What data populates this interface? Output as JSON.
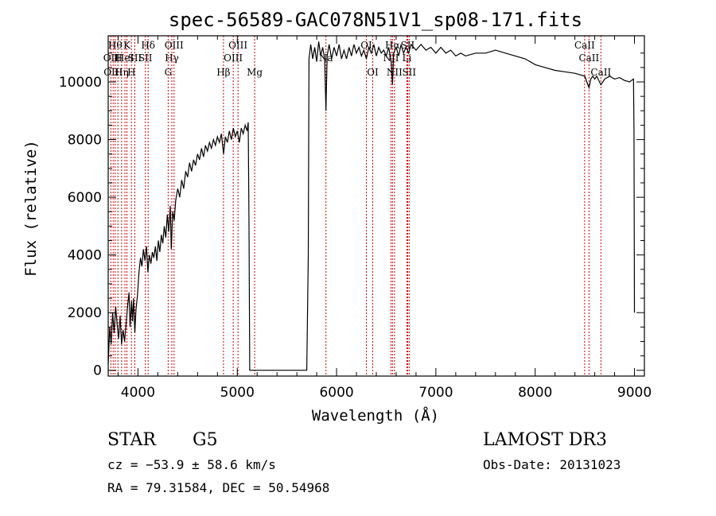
{
  "chart_data": {
    "type": "line",
    "title": "spec-56589-GAC078N51V1_sp08-171.fits",
    "xlabel": "Wavelength (Å)",
    "ylabel": "Flux (relative)",
    "xlim": [
      3700,
      9100
    ],
    "ylim": [
      -200,
      11600
    ],
    "xticks": [
      4000,
      5000,
      6000,
      7000,
      8000,
      9000
    ],
    "yticks": [
      0,
      2000,
      4000,
      6000,
      8000,
      10000
    ],
    "grid": false,
    "line_color": "#000000",
    "marker_color": "#cc0000",
    "series": [
      {
        "name": "flux",
        "points": [
          [
            3700,
            200
          ],
          [
            3715,
            1500
          ],
          [
            3730,
            900
          ],
          [
            3745,
            2000
          ],
          [
            3760,
            1300
          ],
          [
            3775,
            2200
          ],
          [
            3790,
            1600
          ],
          [
            3805,
            1100
          ],
          [
            3820,
            1900
          ],
          [
            3835,
            900
          ],
          [
            3850,
            1400
          ],
          [
            3865,
            1000
          ],
          [
            3880,
            1600
          ],
          [
            3895,
            2200
          ],
          [
            3910,
            2700
          ],
          [
            3920,
            1500
          ],
          [
            3935,
            2400
          ],
          [
            3945,
            1700
          ],
          [
            3955,
            2500
          ],
          [
            3968,
            1300
          ],
          [
            3980,
            2100
          ],
          [
            3995,
            2600
          ],
          [
            4010,
            3400
          ],
          [
            4025,
            3900
          ],
          [
            4040,
            3600
          ],
          [
            4055,
            4200
          ],
          [
            4070,
            3800
          ],
          [
            4085,
            4300
          ],
          [
            4100,
            3400
          ],
          [
            4115,
            4000
          ],
          [
            4130,
            3700
          ],
          [
            4145,
            4100
          ],
          [
            4160,
            3900
          ],
          [
            4175,
            4300
          ],
          [
            4190,
            3800
          ],
          [
            4205,
            4500
          ],
          [
            4220,
            4100
          ],
          [
            4235,
            4700
          ],
          [
            4250,
            4400
          ],
          [
            4265,
            5000
          ],
          [
            4280,
            4600
          ],
          [
            4295,
            5400
          ],
          [
            4310,
            4800
          ],
          [
            4325,
            5700
          ],
          [
            4335,
            4200
          ],
          [
            4350,
            5500
          ],
          [
            4365,
            5200
          ],
          [
            4380,
            5900
          ],
          [
            4400,
            6300
          ],
          [
            4420,
            6000
          ],
          [
            4440,
            6600
          ],
          [
            4460,
            6300
          ],
          [
            4480,
            6900
          ],
          [
            4500,
            6700
          ],
          [
            4520,
            7200
          ],
          [
            4540,
            6900
          ],
          [
            4560,
            7300
          ],
          [
            4580,
            7100
          ],
          [
            4600,
            7500
          ],
          [
            4620,
            7300
          ],
          [
            4640,
            7700
          ],
          [
            4660,
            7400
          ],
          [
            4680,
            7800
          ],
          [
            4700,
            7600
          ],
          [
            4720,
            7900
          ],
          [
            4740,
            7700
          ],
          [
            4760,
            8000
          ],
          [
            4780,
            7800
          ],
          [
            4800,
            8100
          ],
          [
            4820,
            7900
          ],
          [
            4840,
            8200
          ],
          [
            4862,
            7500
          ],
          [
            4880,
            8100
          ],
          [
            4900,
            7900
          ],
          [
            4920,
            8300
          ],
          [
            4940,
            8000
          ],
          [
            4960,
            8400
          ],
          [
            4980,
            8100
          ],
          [
            5000,
            8300
          ],
          [
            5020,
            7900
          ],
          [
            5040,
            8400
          ],
          [
            5060,
            8200
          ],
          [
            5080,
            8500
          ],
          [
            5100,
            8300
          ],
          [
            5110,
            8600
          ],
          [
            5118,
            5000
          ],
          [
            5125,
            0
          ],
          [
            5300,
            0
          ],
          [
            5500,
            0
          ],
          [
            5700,
            0
          ],
          [
            5715,
            4000
          ],
          [
            5722,
            10800
          ],
          [
            5740,
            11300
          ],
          [
            5760,
            10800
          ],
          [
            5780,
            11200
          ],
          [
            5800,
            10700
          ],
          [
            5820,
            11400
          ],
          [
            5840,
            10900
          ],
          [
            5860,
            11200
          ],
          [
            5880,
            10800
          ],
          [
            5893,
            9000
          ],
          [
            5905,
            10900
          ],
          [
            5925,
            11300
          ],
          [
            5950,
            10800
          ],
          [
            5975,
            11200
          ],
          [
            6000,
            10900
          ],
          [
            6025,
            11300
          ],
          [
            6050,
            10800
          ],
          [
            6075,
            11100
          ],
          [
            6100,
            10800
          ],
          [
            6125,
            11200
          ],
          [
            6150,
            10900
          ],
          [
            6175,
            11300
          ],
          [
            6200,
            11000
          ],
          [
            6225,
            11200
          ],
          [
            6250,
            10900
          ],
          [
            6275,
            11100
          ],
          [
            6300,
            10800
          ],
          [
            6325,
            11200
          ],
          [
            6350,
            11000
          ],
          [
            6375,
            11300
          ],
          [
            6400,
            10900
          ],
          [
            6425,
            11200
          ],
          [
            6450,
            11000
          ],
          [
            6475,
            11100
          ],
          [
            6500,
            10900
          ],
          [
            6525,
            11200
          ],
          [
            6550,
            10700
          ],
          [
            6563,
            9900
          ],
          [
            6575,
            11000
          ],
          [
            6600,
            11200
          ],
          [
            6625,
            10900
          ],
          [
            6650,
            11300
          ],
          [
            6675,
            11000
          ],
          [
            6700,
            11200
          ],
          [
            6725,
            11000
          ],
          [
            6750,
            11300
          ],
          [
            6800,
            11100
          ],
          [
            6850,
            11300
          ],
          [
            6900,
            11100
          ],
          [
            6950,
            11200
          ],
          [
            7000,
            11000
          ],
          [
            7050,
            11200
          ],
          [
            7100,
            11000
          ],
          [
            7150,
            11100
          ],
          [
            7200,
            10900
          ],
          [
            7250,
            11000
          ],
          [
            7300,
            10900
          ],
          [
            7400,
            11000
          ],
          [
            7500,
            11000
          ],
          [
            7600,
            11100
          ],
          [
            7700,
            11000
          ],
          [
            7800,
            10900
          ],
          [
            7900,
            10800
          ],
          [
            8000,
            10600
          ],
          [
            8100,
            10500
          ],
          [
            8200,
            10400
          ],
          [
            8300,
            10350
          ],
          [
            8400,
            10300
          ],
          [
            8500,
            10200
          ],
          [
            8520,
            10000
          ],
          [
            8542,
            9800
          ],
          [
            8560,
            10100
          ],
          [
            8580,
            10200
          ],
          [
            8600,
            10100
          ],
          [
            8620,
            10200
          ],
          [
            8662,
            9900
          ],
          [
            8700,
            10100
          ],
          [
            8750,
            10200
          ],
          [
            8800,
            10100
          ],
          [
            8850,
            10150
          ],
          [
            8900,
            10050
          ],
          [
            8950,
            10000
          ],
          [
            8990,
            10100
          ],
          [
            8995,
            8400
          ],
          [
            9000,
            2000
          ]
        ]
      }
    ],
    "line_markers": [
      {
        "wavelength": 3727,
        "row": 2,
        "label": "OII"
      },
      {
        "wavelength": 3750,
        "row": 3,
        "label": "OIII"
      },
      {
        "wavelength": 3770,
        "row": 1,
        "label": "Hθ"
      },
      {
        "wavelength": 3798,
        "row": 2,
        "label": "H"
      },
      {
        "wavelength": 3835,
        "row": 3,
        "label": "Hη"
      },
      {
        "wavelength": 3869,
        "row": 2,
        "label": "HeI"
      },
      {
        "wavelength": 3889,
        "row": 1,
        "label": "K"
      },
      {
        "wavelength": 3934,
        "row": 3,
        "label": "H"
      },
      {
        "wavelength": 3968,
        "row": 2,
        "label": "SII"
      },
      {
        "wavelength": 4102,
        "row": 1,
        "label": "Hδ"
      },
      {
        "wavelength": 4074,
        "row": 2,
        "label": "SII"
      },
      {
        "wavelength": 4304,
        "row": 3,
        "label": "G"
      },
      {
        "wavelength": 4341,
        "row": 2,
        "label": "Hγ"
      },
      {
        "wavelength": 4363,
        "row": 1,
        "label": "OIII"
      },
      {
        "wavelength": 4861,
        "row": 3,
        "label": "Hβ"
      },
      {
        "wavelength": 4959,
        "row": 2,
        "label": "OIII"
      },
      {
        "wavelength": 5007,
        "row": 1,
        "label": "OIII"
      },
      {
        "wavelength": 5175,
        "row": 3,
        "label": "Mg"
      },
      {
        "wavelength": 5893,
        "row": 2,
        "label": "Na"
      },
      {
        "wavelength": 6300,
        "row": 1,
        "label": "OI"
      },
      {
        "wavelength": 6364,
        "row": 3,
        "label": "OI"
      },
      {
        "wavelength": 6548,
        "row": 2,
        "label": "NII"
      },
      {
        "wavelength": 6563,
        "row": 1,
        "label": "Hα"
      },
      {
        "wavelength": 6583,
        "row": 3,
        "label": "NII"
      },
      {
        "wavelength": 6708,
        "row": 2,
        "label": "Li"
      },
      {
        "wavelength": 6716,
        "row": 1,
        "label": "SII"
      },
      {
        "wavelength": 6731,
        "row": 3,
        "label": "SII"
      },
      {
        "wavelength": 8498,
        "row": 1,
        "label": "CaII"
      },
      {
        "wavelength": 8542,
        "row": 2,
        "label": "CaII"
      },
      {
        "wavelength": 8662,
        "row": 3,
        "label": "CaII"
      }
    ]
  },
  "info": {
    "object_class": "STAR",
    "subclass": "G5",
    "survey": "LAMOST DR3",
    "redshift_text": "cz = −53.9 ± 58.6 km/s",
    "obs_date_text": "Obs-Date: 20131023",
    "coords_text": "RA =  79.31584, DEC =  50.54968"
  }
}
